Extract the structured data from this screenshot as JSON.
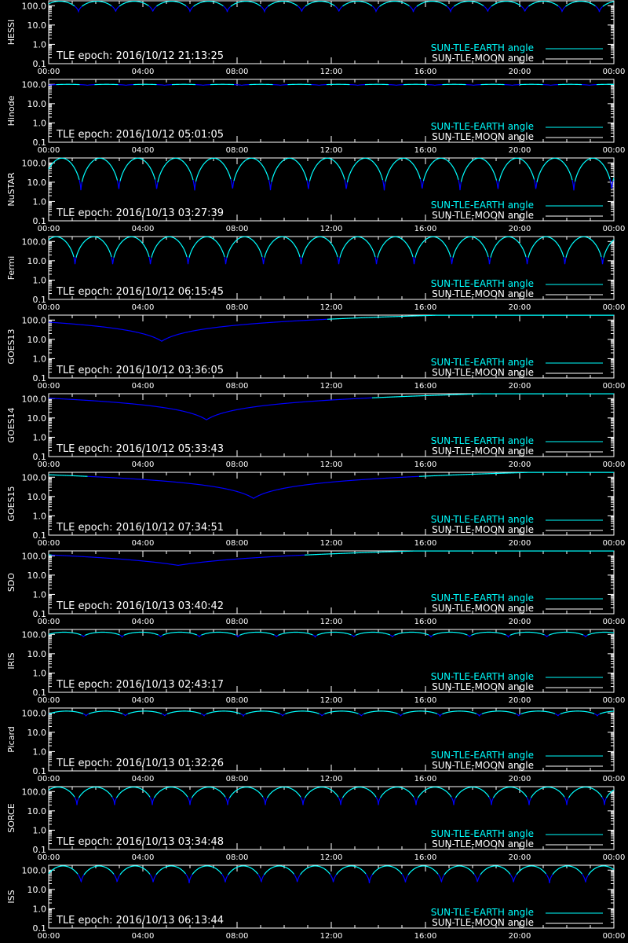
{
  "chart_data": {
    "type": "line",
    "x_axis": {
      "ticks": [
        "00:00",
        "04:00",
        "08:00",
        "12:00",
        "16:00",
        "20:00",
        "00:00"
      ],
      "range_hours": [
        0,
        24
      ]
    },
    "y_axis": {
      "scale": "log",
      "range": [
        0.1,
        180.0
      ],
      "ticks": [
        "0.1",
        "1.0",
        "10.0",
        "100.0"
      ]
    },
    "legend": {
      "placement": "bottom-right",
      "entries": [
        {
          "label": "SUN-TLE-EARTH angle",
          "color": "#00ffff"
        },
        {
          "label": "SUN-TLE-MOON angle",
          "color": "#ffffff"
        }
      ]
    },
    "colors": {
      "background": "#000000",
      "axes": "#ffffff",
      "earth_angle_lit": "#00ffff",
      "earth_angle_eclipse": "#0000ff"
    },
    "panels": [
      {
        "satellite": "HESSI",
        "epoch_label": "TLE epoch: 2016/10/12 21:13:25",
        "series": {
          "kind": "orbital",
          "period_h": 1.58,
          "high": 170,
          "low": 45,
          "phase": 0.2,
          "dark_threshold": 95
        }
      },
      {
        "satellite": "Hinode",
        "epoch_label": "TLE epoch: 2016/10/12 05:01:05",
        "series": {
          "kind": "orbital",
          "period_h": 1.64,
          "high": 100,
          "low": 88,
          "phase": 0.0,
          "dark_threshold": 97
        }
      },
      {
        "satellite": "NuSTAR",
        "epoch_label": "TLE epoch: 2016/10/13 03:27:39",
        "series": {
          "kind": "orbital",
          "period_h": 1.61,
          "high": 175,
          "low": 3,
          "phase": 0.15,
          "dark_threshold": 12
        }
      },
      {
        "satellite": "Fermi",
        "epoch_label": "TLE epoch: 2016/10/12 06:15:45",
        "series": {
          "kind": "orbital",
          "period_h": 1.6,
          "high": 175,
          "low": 5,
          "phase": 0.3,
          "dark_threshold": 15
        }
      },
      {
        "satellite": "GOES13",
        "epoch_label": "TLE epoch: 2016/10/12 03:36:05",
        "series": {
          "kind": "geo",
          "min_time_h": 4.8,
          "min_val": 8,
          "dark_threshold": 110
        }
      },
      {
        "satellite": "GOES14",
        "epoch_label": "TLE epoch: 2016/10/12 05:33:43",
        "series": {
          "kind": "geo",
          "min_time_h": 6.7,
          "min_val": 8,
          "dark_threshold": 110
        }
      },
      {
        "satellite": "GOES15",
        "epoch_label": "TLE epoch: 2016/10/12 07:34:51",
        "series": {
          "kind": "geo",
          "min_time_h": 8.7,
          "min_val": 8,
          "dark_threshold": 110
        }
      },
      {
        "satellite": "SDO",
        "epoch_label": "TLE epoch: 2016/10/13 03:40:42",
        "series": {
          "kind": "geo",
          "min_time_h": 5.5,
          "min_val": 32,
          "dark_threshold": 110
        }
      },
      {
        "satellite": "IRIS",
        "epoch_label": "TLE epoch: 2016/10/13 02:43:17",
        "series": {
          "kind": "orbital",
          "period_h": 1.64,
          "high": 130,
          "low": 72,
          "phase": 0.1,
          "dark_threshold": 92
        }
      },
      {
        "satellite": "Picard",
        "epoch_label": "TLE epoch: 2016/10/13 01:32:26",
        "series": {
          "kind": "orbital",
          "period_h": 1.67,
          "high": 125,
          "low": 68,
          "phase": 0.05,
          "dark_threshold": 90
        }
      },
      {
        "satellite": "SORCE",
        "epoch_label": "TLE epoch: 2016/10/13 03:34:48",
        "series": {
          "kind": "orbital",
          "period_h": 1.6,
          "high": 170,
          "low": 20,
          "phase": 0.25,
          "dark_threshold": 50
        }
      },
      {
        "satellite": "ISS",
        "epoch_label": "TLE epoch: 2016/10/13 06:13:44",
        "series": {
          "kind": "orbital",
          "period_h": 1.53,
          "high": 165,
          "low": 20,
          "phase": 0.1,
          "dark_threshold": 60
        }
      }
    ]
  }
}
